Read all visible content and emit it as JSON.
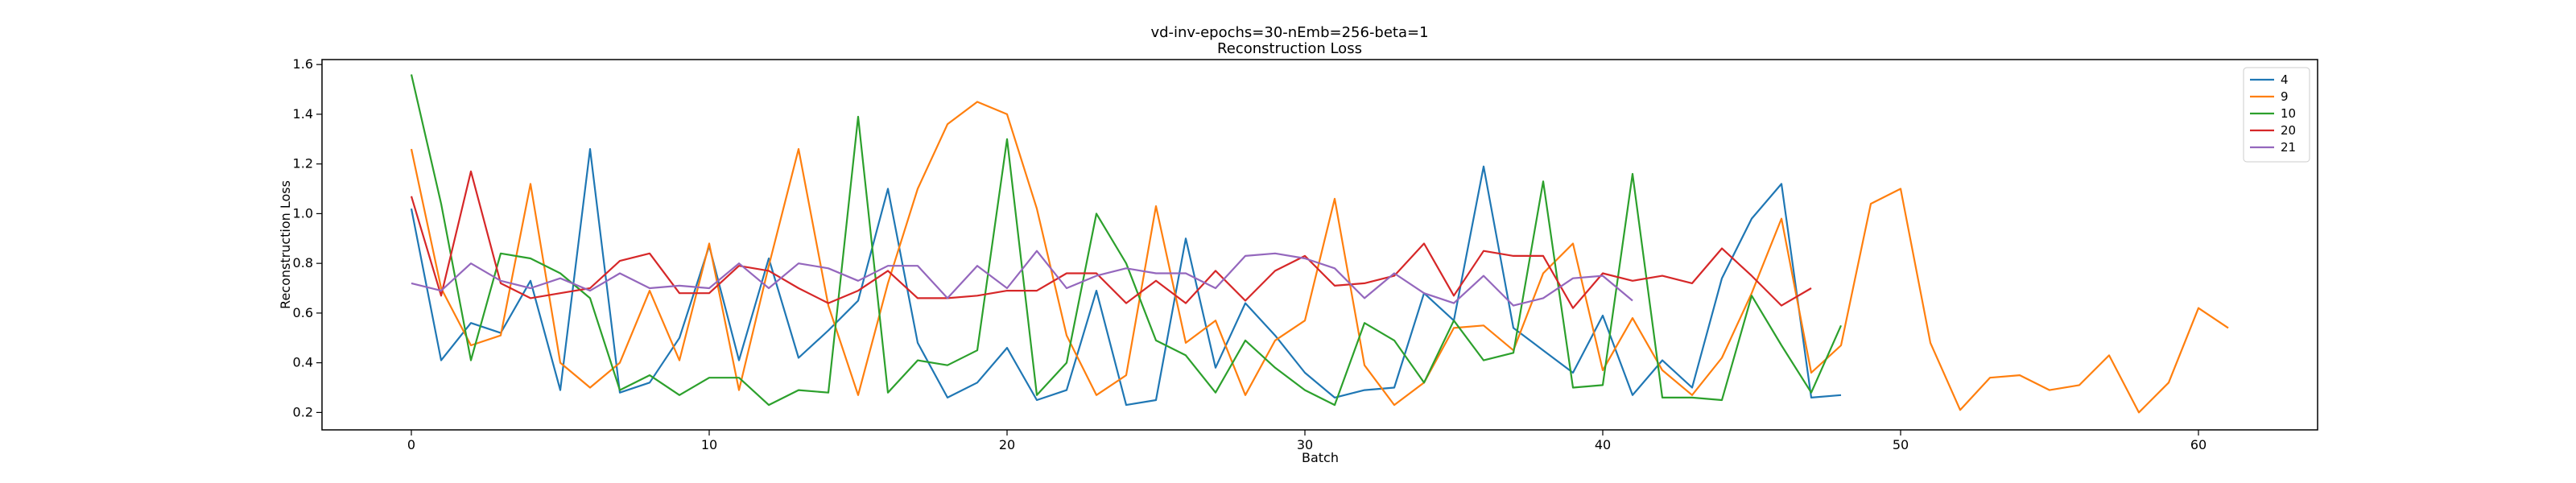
{
  "chart_data": {
    "type": "line",
    "title": "vd-inv-epochs=30-nEmb=256-beta=1",
    "subtitle": "Reconstruction Loss",
    "xlabel": "Batch",
    "ylabel": "Reconstruction Loss",
    "xlim": [
      -3,
      64
    ],
    "ylim": [
      0.13,
      1.62
    ],
    "xticks": [
      0,
      10,
      20,
      30,
      40,
      50,
      60
    ],
    "yticks": [
      0.2,
      0.4,
      0.6,
      0.8,
      1.0,
      1.2,
      1.4,
      1.6
    ],
    "ytick_labels": [
      "0.2",
      "0.4",
      "0.6",
      "0.8",
      "1.0",
      "1.2",
      "1.4",
      "1.6"
    ],
    "grid": false,
    "legend_position": "top-right",
    "series": [
      {
        "name": "4",
        "color": "#1f77b4",
        "values": [
          1.02,
          0.41,
          0.56,
          0.52,
          0.73,
          0.29,
          1.26,
          0.28,
          0.32,
          0.5,
          0.87,
          0.41,
          0.82,
          0.42,
          0.53,
          0.65,
          1.1,
          0.48,
          0.26,
          0.32,
          0.46,
          0.25,
          0.29,
          0.69,
          0.23,
          0.25,
          0.9,
          0.38,
          0.64,
          0.51,
          0.36,
          0.26,
          0.29,
          0.3,
          0.68,
          0.57,
          1.19,
          0.54,
          0.45,
          0.36,
          0.59,
          0.27,
          0.41,
          0.3,
          0.74,
          0.98,
          1.12,
          0.26,
          0.27
        ]
      },
      {
        "name": "9",
        "color": "#ff7f0e",
        "values": [
          1.26,
          0.7,
          0.47,
          0.51,
          1.12,
          0.4,
          0.3,
          0.4,
          0.69,
          0.41,
          0.88,
          0.29,
          0.79,
          1.26,
          0.63,
          0.27,
          0.72,
          1.1,
          1.36,
          1.45,
          1.4,
          1.02,
          0.51,
          0.27,
          0.35,
          1.03,
          0.48,
          0.57,
          0.27,
          0.49,
          0.57,
          1.06,
          0.39,
          0.23,
          0.32,
          0.54,
          0.55,
          0.45,
          0.76,
          0.88,
          0.37,
          0.58,
          0.37,
          0.27,
          0.42,
          0.68,
          0.98,
          0.36,
          0.47,
          1.04,
          1.1,
          0.48,
          0.21,
          0.34,
          0.35,
          0.29,
          0.31,
          0.43,
          0.2,
          0.32,
          0.62,
          0.54
        ]
      },
      {
        "name": "10",
        "color": "#2ca02c",
        "values": [
          1.56,
          1.04,
          0.41,
          0.84,
          0.82,
          0.76,
          0.66,
          0.29,
          0.35,
          0.27,
          0.34,
          0.34,
          0.23,
          0.29,
          0.28,
          1.39,
          0.28,
          0.41,
          0.39,
          0.45,
          1.3,
          0.27,
          0.4,
          1.0,
          0.8,
          0.49,
          0.43,
          0.28,
          0.49,
          0.38,
          0.29,
          0.23,
          0.56,
          0.49,
          0.32,
          0.57,
          0.41,
          0.44,
          1.13,
          0.3,
          0.31,
          1.16,
          0.26,
          0.26,
          0.25,
          0.67,
          0.47,
          0.28,
          0.55
        ]
      },
      {
        "name": "20",
        "color": "#d62728",
        "values": [
          1.07,
          0.67,
          1.17,
          0.72,
          0.66,
          0.68,
          0.7,
          0.81,
          0.84,
          0.68,
          0.68,
          0.79,
          0.77,
          0.7,
          0.64,
          0.69,
          0.77,
          0.66,
          0.66,
          0.67,
          0.69,
          0.69,
          0.76,
          0.76,
          0.64,
          0.73,
          0.64,
          0.77,
          0.65,
          0.77,
          0.83,
          0.71,
          0.72,
          0.75,
          0.88,
          0.67,
          0.85,
          0.83,
          0.83,
          0.62,
          0.76,
          0.73,
          0.75,
          0.72,
          0.86,
          0.75,
          0.63,
          0.7
        ]
      },
      {
        "name": "21",
        "color": "#9467bd",
        "values": [
          0.72,
          0.69,
          0.8,
          0.73,
          0.7,
          0.74,
          0.69,
          0.76,
          0.7,
          0.71,
          0.7,
          0.8,
          0.7,
          0.8,
          0.78,
          0.73,
          0.79,
          0.79,
          0.66,
          0.79,
          0.7,
          0.85,
          0.7,
          0.75,
          0.78,
          0.76,
          0.76,
          0.7,
          0.83,
          0.84,
          0.82,
          0.78,
          0.66,
          0.76,
          0.68,
          0.64,
          0.75,
          0.63,
          0.66,
          0.74,
          0.75,
          0.65
        ]
      }
    ]
  }
}
